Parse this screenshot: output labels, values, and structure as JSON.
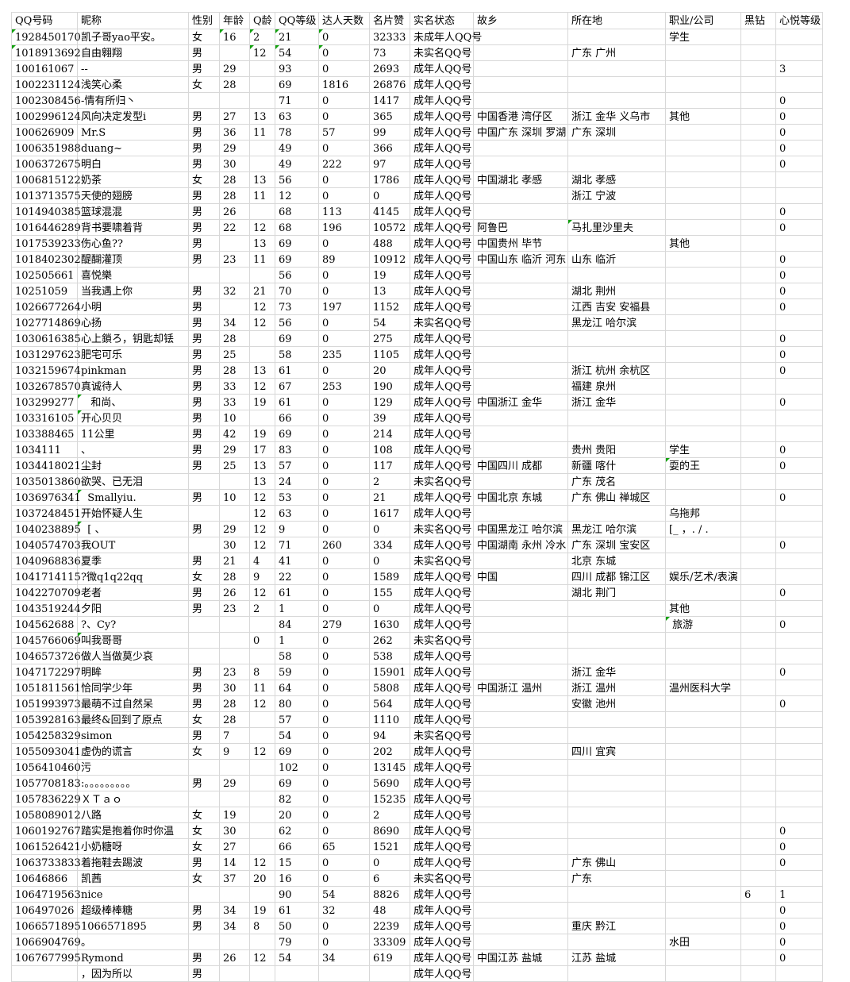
{
  "sheet": {
    "type": "spreadsheet-grid",
    "grid_color": "#d8d8d8",
    "error_indicator_color": "#12a10e",
    "background": "#ffffff"
  },
  "columns": [
    {
      "key": "qq",
      "label": "QQ号码",
      "width": 83
    },
    {
      "key": "nick",
      "label": "昵称",
      "width": 140
    },
    {
      "key": "gender",
      "label": "性别",
      "width": 39
    },
    {
      "key": "age",
      "label": "年龄",
      "width": 38
    },
    {
      "key": "qage",
      "label": "Q龄",
      "width": 32
    },
    {
      "key": "level",
      "label": "QQ等级",
      "width": 55
    },
    {
      "key": "daren",
      "label": "达人天数",
      "width": 64
    },
    {
      "key": "likes",
      "label": "名片赞",
      "width": 51
    },
    {
      "key": "status",
      "label": "实名状态",
      "width": 80
    },
    {
      "key": "hometown",
      "label": "故乡",
      "width": 119
    },
    {
      "key": "location",
      "label": "所在地",
      "width": 123
    },
    {
      "key": "job",
      "label": "职业/公司",
      "width": 95
    },
    {
      "key": "diamond",
      "label": "黑钻",
      "width": 44
    },
    {
      "key": "xinyue",
      "label": "心悦等级",
      "width": 59
    }
  ],
  "rows": [
    {
      "qq": "1928450170",
      "nick": "凯子哥yao平安。",
      "gender": "女",
      "age": "16",
      "qage": "2",
      "level": "21",
      "daren": "0",
      "likes": "32333",
      "status": "未成年人QQ号",
      "job": "学生",
      "tri": [
        "qq",
        "age",
        "qage",
        "level",
        "daren"
      ]
    },
    {
      "qq": "1018913692",
      "nick": "自由翱翔",
      "gender": "男",
      "qage": "12",
      "level": "54",
      "daren": "0",
      "likes": "73",
      "status": "未实名QQ号",
      "location": "广东 广州",
      "tri": [
        "qq",
        "qage",
        "level",
        "daren"
      ]
    },
    {
      "qq": "100161067",
      "nick": "--",
      "gender": "男",
      "age": "29",
      "level": "93",
      "daren": "0",
      "likes": "2693",
      "status": "成年人QQ号",
      "xinyue": "3"
    },
    {
      "qq": "1002231124",
      "nick": "浅笑心柔",
      "gender": "女",
      "age": "28",
      "level": "69",
      "daren": "1816",
      "likes": "26876",
      "status": "成年人QQ号"
    },
    {
      "qq": "1002308456",
      "nick": "-情有所归丶",
      "level": "71",
      "daren": "0",
      "likes": "1417",
      "status": "成年人QQ号",
      "xinyue": "0"
    },
    {
      "qq": "1002996124",
      "nick": "风向决定发型i",
      "gender": "男",
      "age": "27",
      "qage": "13",
      "level": "63",
      "daren": "0",
      "likes": "365",
      "status": "成年人QQ号",
      "hometown": "中国香港 湾仔区",
      "location": "浙江 金华 义乌市",
      "job": "其他",
      "xinyue": "0"
    },
    {
      "qq": "100626909",
      "nick": "Mr.S",
      "gender": "男",
      "age": "36",
      "qage": "11",
      "level": "78",
      "daren": "57",
      "likes": "99",
      "status": "成年人QQ号",
      "hometown": "中国广东 深圳 罗湖",
      "location": "广东 深圳",
      "xinyue": "0"
    },
    {
      "qq": "1006351988",
      "nick": "duang~",
      "gender": "男",
      "age": "29",
      "level": "49",
      "daren": "0",
      "likes": "366",
      "status": "成年人QQ号",
      "xinyue": "0"
    },
    {
      "qq": "1006372675",
      "nick": "明白",
      "gender": "男",
      "age": "30",
      "level": "49",
      "daren": "222",
      "likes": "97",
      "status": "成年人QQ号",
      "xinyue": "0"
    },
    {
      "qq": "1006815122",
      "nick": "奶茶",
      "gender": "女",
      "age": "28",
      "qage": "13",
      "level": "56",
      "daren": "0",
      "likes": "1786",
      "status": "成年人QQ号",
      "hometown": "中国湖北 孝感",
      "location": "湖北 孝感"
    },
    {
      "qq": "1013713575",
      "nick": "天使的翅膀",
      "gender": "男",
      "age": "28",
      "qage": "11",
      "level": "12",
      "daren": "0",
      "likes": "0",
      "status": "成年人QQ号",
      "location": "浙江 宁波"
    },
    {
      "qq": "1014940385",
      "nick": "篮球混混",
      "gender": "男",
      "age": "26",
      "level": "68",
      "daren": "113",
      "likes": "4145",
      "status": "成年人QQ号",
      "xinyue": "0"
    },
    {
      "qq": "1016446289",
      "nick": "背书要啸着背",
      "gender": "男",
      "age": "22",
      "qage": "12",
      "level": "68",
      "daren": "196",
      "likes": "10572",
      "status": "成年人QQ号",
      "hometown": "阿鲁巴",
      "location": "马扎里沙里夫",
      "xinyue": "0",
      "tri": [
        "location"
      ]
    },
    {
      "qq": "1017539233",
      "nick": "伤心鱼??",
      "gender": "男",
      "qage": "13",
      "level": "69",
      "daren": "0",
      "likes": "488",
      "status": "成年人QQ号",
      "hometown": "中国贵州 毕节",
      "job": "其他"
    },
    {
      "qq": "1018402302",
      "nick": "醍醐灌顶",
      "gender": "男",
      "age": "23",
      "qage": "11",
      "level": "69",
      "daren": "89",
      "likes": "10912",
      "status": "成年人QQ号",
      "hometown": "中国山东 临沂 河东",
      "location": "山东 临沂",
      "xinyue": "0"
    },
    {
      "qq": "102505661",
      "nick": "喜悦樂",
      "level": "56",
      "daren": "0",
      "likes": "19",
      "status": "成年人QQ号",
      "xinyue": "0"
    },
    {
      "qq": "10251059",
      "nick": "当我遇上你",
      "gender": "男",
      "age": "32",
      "qage": "21",
      "level": "70",
      "daren": "0",
      "likes": "13",
      "status": "成年人QQ号",
      "location": "湖北 荆州",
      "xinyue": "0"
    },
    {
      "qq": "1026677264",
      "nick": "小明",
      "gender": "男",
      "qage": "12",
      "level": "73",
      "daren": "197",
      "likes": "1152",
      "status": "成年人QQ号",
      "location": "江西 吉安 安福县",
      "xinyue": "0"
    },
    {
      "qq": "1027714869",
      "nick": "心扬",
      "gender": "男",
      "age": "34",
      "qage": "12",
      "level": "56",
      "daren": "0",
      "likes": "54",
      "status": "未实名QQ号",
      "location": "黑龙江 哈尔滨"
    },
    {
      "qq": "1030616385",
      "nick": "心上鎖ろ，钥匙却铥",
      "gender": "男",
      "age": "28",
      "level": "69",
      "daren": "0",
      "likes": "275",
      "status": "成年人QQ号",
      "xinyue": "0"
    },
    {
      "qq": "1031297623",
      "nick": "肥宅可乐",
      "gender": "男",
      "age": "25",
      "level": "58",
      "daren": "235",
      "likes": "1105",
      "status": "成年人QQ号",
      "xinyue": "0"
    },
    {
      "qq": "1032159674",
      "nick": "pinkman",
      "gender": "男",
      "age": "28",
      "qage": "13",
      "level": "61",
      "daren": "0",
      "likes": "20",
      "status": "成年人QQ号",
      "location": "浙江 杭州 余杭区",
      "xinyue": "0"
    },
    {
      "qq": "1032678570",
      "nick": "真诚待人",
      "gender": "男",
      "age": "33",
      "qage": "12",
      "level": "67",
      "daren": "253",
      "likes": "190",
      "status": "成年人QQ号",
      "location": "福建 泉州"
    },
    {
      "qq": "103299277",
      "nick": "   和尚、",
      "gender": "男",
      "age": "33",
      "qage": "19",
      "level": "61",
      "daren": "0",
      "likes": "129",
      "status": "成年人QQ号",
      "hometown": "中国浙江 金华",
      "location": "浙江 金华",
      "xinyue": "0",
      "tri": [
        "nick"
      ]
    },
    {
      "qq": "103316105",
      "nick": "开心贝贝",
      "gender": "男",
      "age": "10",
      "level": "66",
      "daren": "0",
      "likes": "39",
      "status": "成年人QQ号",
      "tri": [
        "nick"
      ]
    },
    {
      "qq": "103388465",
      "nick": "11公里",
      "gender": "男",
      "age": "42",
      "qage": "19",
      "level": "69",
      "daren": "0",
      "likes": "214",
      "status": "成年人QQ号"
    },
    {
      "qq": "1034111",
      "nick": "、",
      "gender": "男",
      "age": "29",
      "qage": "17",
      "level": "83",
      "daren": "0",
      "likes": "108",
      "status": "成年人QQ号",
      "location": "贵州 贵阳",
      "job": "学生",
      "xinyue": "0"
    },
    {
      "qq": "1034418021",
      "nick": "尘封",
      "gender": "男",
      "age": "25",
      "qage": "13",
      "level": "57",
      "daren": "0",
      "likes": "117",
      "status": "成年人QQ号",
      "hometown": "中国四川 成都",
      "location": "新疆 喀什",
      "job": "耍的王",
      "xinyue": "0",
      "tri": [
        "job"
      ]
    },
    {
      "qq": "1035013860",
      "nick": "欲哭、已无泪",
      "qage": "13",
      "level": "24",
      "daren": "0",
      "likes": "2",
      "status": "未实名QQ号",
      "location": "广东 茂名"
    },
    {
      "qq": "1036976341",
      "nick": "  Smallyiu.",
      "gender": "男",
      "age": "10",
      "qage": "12",
      "level": "53",
      "daren": "0",
      "likes": "21",
      "status": "成年人QQ号",
      "hometown": "中国北京 东城",
      "location": "广东 佛山 禅城区",
      "xinyue": "0",
      "tri": [
        "nick"
      ]
    },
    {
      "qq": "1037248451",
      "nick": "开始怀疑人生",
      "qage": "12",
      "level": "63",
      "daren": "0",
      "likes": "1617",
      "status": "成年人QQ号",
      "job": "乌拖邦"
    },
    {
      "qq": "1040238895",
      "nick": "  [ 、",
      "gender": "男",
      "age": "29",
      "qage": "12",
      "level": "9",
      "daren": "0",
      "likes": "0",
      "status": "未实名QQ号",
      "hometown": "中国黑龙江 哈尔滨",
      "location": "黑龙江 哈尔滨",
      "job": "[_ ，. / .",
      "tri": [
        "nick"
      ]
    },
    {
      "qq": "1040574703",
      "nick": "我OUT",
      "age": "30",
      "qage": "12",
      "level": "71",
      "daren": "260",
      "likes": "334",
      "status": "成年人QQ号",
      "hometown": "中国湖南 永州 冷水",
      "location": "广东 深圳 宝安区",
      "xinyue": "0"
    },
    {
      "qq": "1040968836",
      "nick": "夏季",
      "gender": "男",
      "age": "21",
      "qage": "4",
      "level": "41",
      "daren": "0",
      "likes": "0",
      "status": "未实名QQ号",
      "location": "北京 东城"
    },
    {
      "qq": "1041714115",
      "nick": "?微q1q22qq",
      "gender": "女",
      "age": "28",
      "qage": "9",
      "level": "22",
      "daren": "0",
      "likes": "1589",
      "status": "成年人QQ号",
      "hometown": "中国",
      "location": "四川 成都 锦江区",
      "job": "娱乐/艺术/表演"
    },
    {
      "qq": "1042270709",
      "nick": "老者",
      "gender": "男",
      "age": "26",
      "qage": "12",
      "level": "61",
      "daren": "0",
      "likes": "155",
      "status": "成年人QQ号",
      "location": "湖北 荆门",
      "xinyue": "0"
    },
    {
      "qq": "1043519244",
      "nick": "夕阳",
      "gender": "男",
      "age": "23",
      "qage": "2",
      "level": "1",
      "daren": "0",
      "likes": "0",
      "status": "成年人QQ号",
      "job": "其他"
    },
    {
      "qq": "104562688",
      "nick": "?、Cy?",
      "level": "84",
      "daren": "279",
      "likes": "1630",
      "status": "成年人QQ号",
      "job": " 旅游",
      "xinyue": "0",
      "tri": [
        "job"
      ]
    },
    {
      "qq": "1045766069",
      "nick": "叫我哥哥",
      "qage": "0",
      "level": "1",
      "daren": "0",
      "likes": "262",
      "status": "未实名QQ号",
      "tri": [
        "nick"
      ]
    },
    {
      "qq": "1046573726",
      "nick": "做人当做莫少哀",
      "level": "58",
      "daren": "0",
      "likes": "538",
      "status": "成年人QQ号"
    },
    {
      "qq": "1047172297",
      "nick": "明眸",
      "gender": "男",
      "age": "23",
      "qage": "8",
      "level": "59",
      "daren": "0",
      "likes": "15901",
      "status": "成年人QQ号",
      "location": "浙江 金华",
      "xinyue": "0"
    },
    {
      "qq": "1051811561",
      "nick": "恰同学少年",
      "gender": "男",
      "age": "30",
      "qage": "11",
      "level": "64",
      "daren": "0",
      "likes": "5808",
      "status": "成年人QQ号",
      "hometown": "中国浙江 温州",
      "location": "浙江 温州",
      "job": "温州医科大学"
    },
    {
      "qq": "1051993973",
      "nick": "最萌不过自然呆",
      "gender": "男",
      "age": "28",
      "qage": "12",
      "level": "80",
      "daren": "0",
      "likes": "564",
      "status": "成年人QQ号",
      "location": "安徽 池州",
      "xinyue": "0"
    },
    {
      "qq": "1053928163",
      "nick": "最终&回到了原点",
      "gender": "女",
      "age": "28",
      "level": "57",
      "daren": "0",
      "likes": "1110",
      "status": "成年人QQ号"
    },
    {
      "qq": "1054258329",
      "nick": "simon",
      "gender": "男",
      "age": "7",
      "level": "54",
      "daren": "0",
      "likes": "94",
      "status": "未实名QQ号"
    },
    {
      "qq": "1055093041",
      "nick": "虚伪的谎言",
      "gender": "女",
      "age": "9",
      "qage": "12",
      "level": "69",
      "daren": "0",
      "likes": "202",
      "status": "成年人QQ号",
      "location": "四川 宜宾"
    },
    {
      "qq": "1056410460",
      "nick": "污",
      "level": "102",
      "daren": "0",
      "likes": "13145",
      "status": "成年人QQ号"
    },
    {
      "qq": "1057708183",
      "nick": ":。。。。。。。。。",
      "gender": "男",
      "age": "29",
      "level": "69",
      "daren": "0",
      "likes": "5690",
      "status": "成年人QQ号"
    },
    {
      "qq": "1057836229",
      "nick": "ＸＴａｏ",
      "level": "82",
      "daren": "0",
      "likes": "15235",
      "status": "成年人QQ号"
    },
    {
      "qq": "1058089012",
      "nick": "八路",
      "gender": "女",
      "age": "19",
      "level": "20",
      "daren": "0",
      "likes": "2",
      "status": "成年人QQ号"
    },
    {
      "qq": "1060192767",
      "nick": "踏实是抱着你时你温",
      "gender": "女",
      "age": "30",
      "level": "62",
      "daren": "0",
      "likes": "8690",
      "status": "成年人QQ号",
      "xinyue": "0"
    },
    {
      "qq": "1061526421",
      "nick": "小奶糖呀",
      "gender": "女",
      "age": "27",
      "level": "66",
      "daren": "65",
      "likes": "1521",
      "status": "成年人QQ号",
      "xinyue": "0"
    },
    {
      "qq": "1063733833",
      "nick": "着拖鞋去踢波",
      "gender": "男",
      "age": "14",
      "qage": "12",
      "level": "15",
      "daren": "0",
      "likes": "0",
      "status": "成年人QQ号",
      "location": "广东 佛山",
      "xinyue": "0"
    },
    {
      "qq": "10646866",
      "nick": "凯茜",
      "gender": "女",
      "age": "37",
      "qage": "20",
      "level": "16",
      "daren": "0",
      "likes": "6",
      "status": "未实名QQ号",
      "location": "广东"
    },
    {
      "qq": "1064719563",
      "nick": "nice",
      "level": "90",
      "daren": "54",
      "likes": "8826",
      "status": "成年人QQ号",
      "diamond": "6",
      "xinyue": "1"
    },
    {
      "qq": "106497026",
      "nick": "超级棒棒糖",
      "gender": "男",
      "age": "34",
      "qage": "19",
      "level": "61",
      "daren": "32",
      "likes": "48",
      "status": "成年人QQ号",
      "xinyue": "0"
    },
    {
      "qq": "1066571895",
      "nick": "1066571895",
      "gender": "男",
      "age": "34",
      "qage": "8",
      "level": "50",
      "daren": "0",
      "likes": "2239",
      "status": "成年人QQ号",
      "location": "重庆 黔江",
      "xinyue": "0"
    },
    {
      "qq": "1066904769",
      "nick": "。",
      "level": "79",
      "daren": "0",
      "likes": "33309",
      "status": "成年人QQ号",
      "job": "水田",
      "xinyue": "0"
    },
    {
      "qq": "1067677995",
      "nick": "Rymond",
      "gender": "男",
      "age": "26",
      "qage": "12",
      "level": "54",
      "daren": "34",
      "likes": "619",
      "status": "成年人QQ号",
      "hometown": "中国江苏 盐城",
      "location": "江苏 盐城",
      "xinyue": "0"
    },
    {
      "qq": "",
      "nick": "，因为所以",
      "gender": "男",
      "status": "成年人QQ号",
      "partial": true
    }
  ]
}
